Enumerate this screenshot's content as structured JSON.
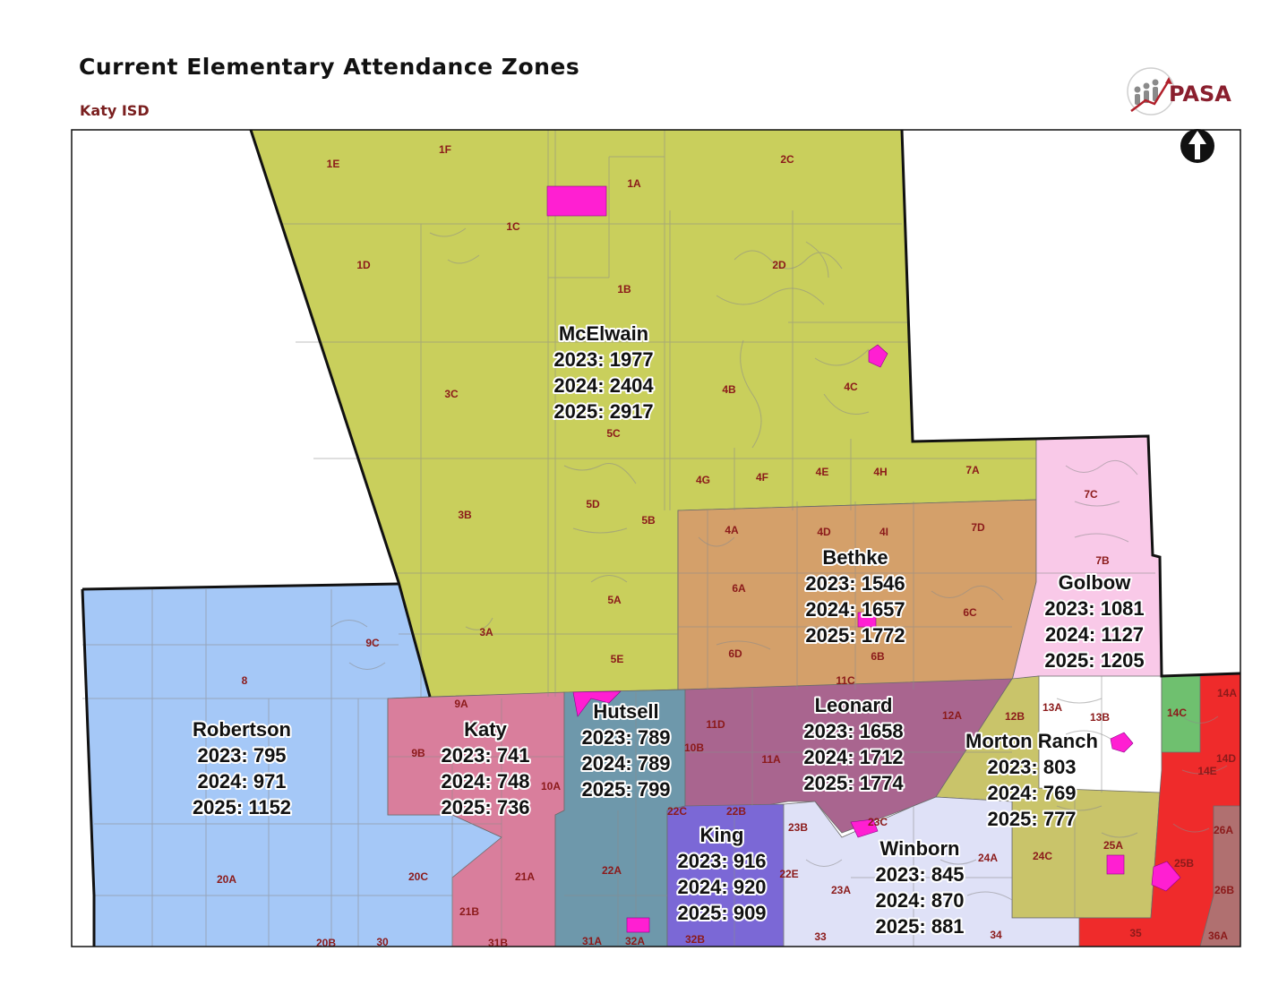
{
  "header": {
    "title": "Current Elementary Attendance Zones",
    "subtitle": "Katy ISD"
  },
  "logo": {
    "text": "PASA",
    "icon": "people-growth-chart-icon"
  },
  "north_arrow": {
    "icon": "north-arrow-icon"
  },
  "colors": {
    "mcelwain": "#c9cf5c",
    "bethke": "#d4a06a",
    "golbow": "#f9c9e8",
    "robertson": "#a5c8f7",
    "katy": "#d97e9c",
    "hutsell": "#6e98ab",
    "leonard": "#a9658f",
    "morton_ranch": "#c9c46a",
    "king": "#7b68d6",
    "winborn": "#dfe1f7",
    "red_zone": "#ef2b2b",
    "green_zone": "#6fc06f",
    "brown_zone": "#b07070",
    "school_marker": "#ff1fd2"
  },
  "zones": [
    {
      "id": "mcelwain",
      "name": "McElwain",
      "y2023": "2023: 1977",
      "y2024": "2024: 2404",
      "y2025": "2025: 2917"
    },
    {
      "id": "bethke",
      "name": "Bethke",
      "y2023": "2023: 1546",
      "y2024": "2024: 1657",
      "y2025": "2025: 1772"
    },
    {
      "id": "golbow",
      "name": "Golbow",
      "y2023": "2023: 1081",
      "y2024": "2024: 1127",
      "y2025": "2025: 1205"
    },
    {
      "id": "robertson",
      "name": "Robertson",
      "y2023": "2023: 795",
      "y2024": "2024: 971",
      "y2025": "2025: 1152"
    },
    {
      "id": "katy",
      "name": "Katy",
      "y2023": "2023: 741",
      "y2024": "2024: 748",
      "y2025": "2025: 736"
    },
    {
      "id": "hutsell",
      "name": "Hutsell",
      "y2023": "2023: 789",
      "y2024": "2024: 789",
      "y2025": "2025: 799"
    },
    {
      "id": "leonard",
      "name": "Leonard",
      "y2023": "2023: 1658",
      "y2024": "2024: 1712",
      "y2025": "2025: 1774"
    },
    {
      "id": "morton-ranch",
      "name": "Morton Ranch",
      "y2023": "2023: 803",
      "y2024": "2024: 769",
      "y2025": "2025: 777"
    },
    {
      "id": "king",
      "name": "King",
      "y2023": "2023: 916",
      "y2024": "2024: 920",
      "y2025": "2025: 909"
    },
    {
      "id": "winborn",
      "name": "Winborn",
      "y2023": "2023: 845",
      "y2024": "2024: 870",
      "y2025": "2025: 881"
    }
  ],
  "planning_units": [
    "1E",
    "1F",
    "2C",
    "1A",
    "1C",
    "1D",
    "2D",
    "1B",
    "3C",
    "4B",
    "4C",
    "5C",
    "3B",
    "5D",
    "5B",
    "4G",
    "4F",
    "4E",
    "4H",
    "7A",
    "7C",
    "4A",
    "4D",
    "4I",
    "7D",
    "7B",
    "6A",
    "6C",
    "5A",
    "3A",
    "5E",
    "6D",
    "6B",
    "11C",
    "9C",
    "8",
    "9A",
    "9B",
    "10A",
    "10B",
    "11D",
    "11A",
    "12A",
    "12B",
    "13A",
    "13B",
    "14A",
    "14C",
    "14D",
    "14E",
    "22C",
    "22B",
    "23B",
    "23C",
    "26A",
    "20A",
    "20C",
    "21A",
    "22A",
    "22E",
    "23A",
    "24A",
    "24C",
    "25A",
    "25B",
    "26B",
    "21B",
    "20B",
    "30",
    "31B",
    "31A",
    "32A",
    "32B",
    "33",
    "34",
    "35",
    "36A"
  ]
}
